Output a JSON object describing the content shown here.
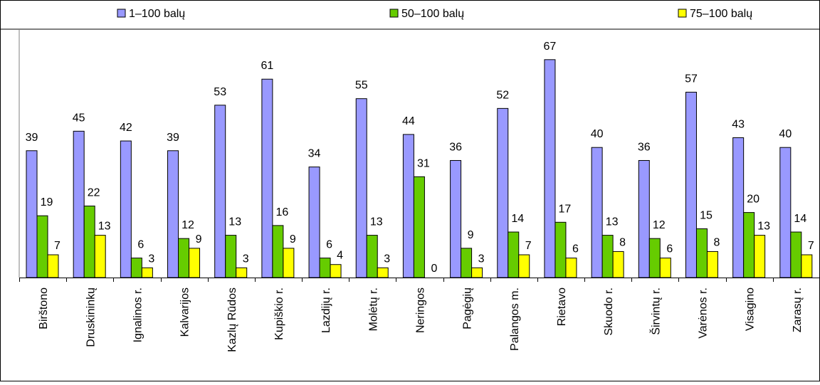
{
  "chart_data": {
    "type": "bar",
    "title": "",
    "xlabel": "",
    "ylabel": "",
    "ylim": [
      0,
      70
    ],
    "grid": false,
    "legend_position": "top",
    "categories": [
      "Birštono",
      "Druskininkų",
      "Ignalinos r.",
      "Kalvarijos",
      "Kazlų Rūdos",
      "Kupiškio r.",
      "Lazdijų r.",
      "Molėtų r.",
      "Neringos",
      "Pagėgių",
      "Palangos m.",
      "Rietavo",
      "Skuodo r.",
      "Širvintų r.",
      "Varėnos r.",
      "Visagino",
      "Zarasų r."
    ],
    "series": [
      {
        "name": "1–100 balų",
        "color": "#9999ff",
        "values": [
          39,
          45,
          42,
          39,
          53,
          61,
          34,
          55,
          44,
          36,
          52,
          67,
          40,
          36,
          57,
          43,
          40
        ]
      },
      {
        "name": "50–100 balų",
        "color": "#66cc00",
        "values": [
          19,
          22,
          6,
          12,
          13,
          16,
          6,
          13,
          31,
          9,
          14,
          17,
          13,
          12,
          15,
          20,
          14
        ]
      },
      {
        "name": "75–100 balų",
        "color": "#ffff00",
        "values": [
          7,
          13,
          3,
          9,
          3,
          9,
          4,
          3,
          0,
          3,
          7,
          6,
          8,
          6,
          8,
          13,
          7
        ]
      }
    ]
  }
}
